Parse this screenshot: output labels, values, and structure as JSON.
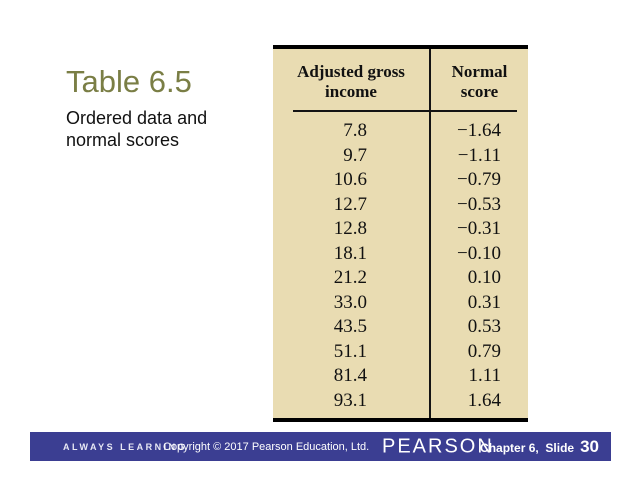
{
  "slide": {
    "title": "Table 6.5",
    "subtitle": "Ordered data and\nnormal scores"
  },
  "table": {
    "header_col1": "Adjusted gross\nincome",
    "header_col2": "Normal\nscore",
    "rows": [
      {
        "income": "7.8",
        "score": "−1.64"
      },
      {
        "income": "9.7",
        "score": "−1.11"
      },
      {
        "income": "10.6",
        "score": "−0.79"
      },
      {
        "income": "12.7",
        "score": "−0.53"
      },
      {
        "income": "12.8",
        "score": "−0.31"
      },
      {
        "income": "18.1",
        "score": "−0.10"
      },
      {
        "income": "21.2",
        "score": "0.10"
      },
      {
        "income": "33.0",
        "score": "0.31"
      },
      {
        "income": "43.5",
        "score": "0.53"
      },
      {
        "income": "51.1",
        "score": "0.79"
      },
      {
        "income": "81.4",
        "score": "1.11"
      },
      {
        "income": "93.1",
        "score": "1.64"
      }
    ]
  },
  "footer": {
    "always_learning": "ALWAYS LEARNING",
    "copyright": "Copyright © 2017 Pearson Education, Ltd.",
    "brand": "PEARSON",
    "chapter_label": "Chapter 6,  Slide",
    "slide_number": "30"
  },
  "colors": {
    "title_text": "#7a7e45",
    "table_background": "#e9dcb2",
    "table_rule": "#000000",
    "footer_background": "#3b3e92",
    "footer_text": "#ffffff"
  },
  "chart_data": {
    "type": "table",
    "title": "Table 6.5 Ordered data and normal scores",
    "columns": [
      "Adjusted gross income",
      "Normal score"
    ],
    "rows": [
      [
        7.8,
        -1.64
      ],
      [
        9.7,
        -1.11
      ],
      [
        10.6,
        -0.79
      ],
      [
        12.7,
        -0.53
      ],
      [
        12.8,
        -0.31
      ],
      [
        18.1,
        -0.1
      ],
      [
        21.2,
        0.1
      ],
      [
        33.0,
        0.31
      ],
      [
        43.5,
        0.53
      ],
      [
        51.1,
        0.79
      ],
      [
        81.4,
        1.11
      ],
      [
        93.1,
        1.64
      ]
    ]
  }
}
